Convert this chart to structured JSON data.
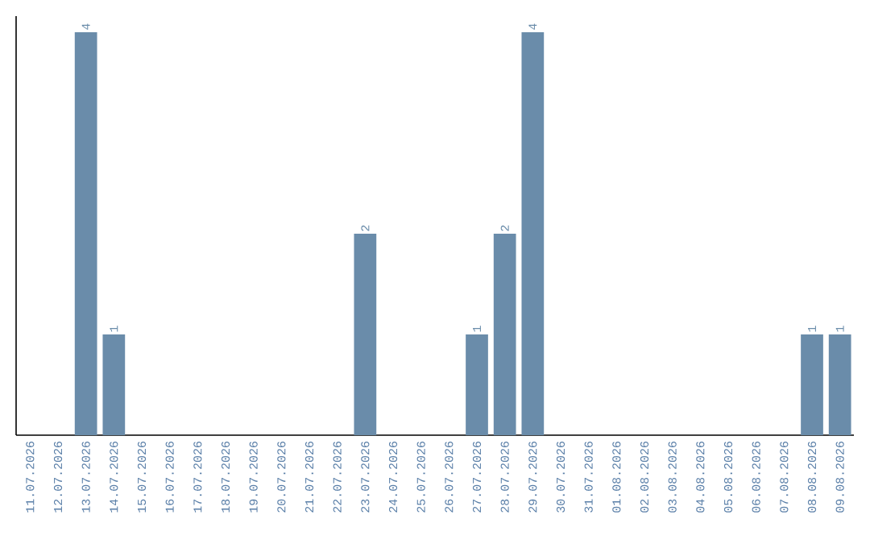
{
  "chart_data": {
    "type": "bar",
    "categories": [
      "11.07.2026",
      "12.07.2026",
      "13.07.2026",
      "14.07.2026",
      "15.07.2026",
      "16.07.2026",
      "17.07.2026",
      "18.07.2026",
      "19.07.2026",
      "20.07.2026",
      "21.07.2026",
      "22.07.2026",
      "23.07.2026",
      "24.07.2026",
      "25.07.2026",
      "26.07.2026",
      "27.07.2026",
      "28.07.2026",
      "29.07.2026",
      "30.07.2026",
      "31.07.2026",
      "01.08.2026",
      "02.08.2026",
      "03.08.2026",
      "04.08.2026",
      "05.08.2026",
      "06.08.2026",
      "07.08.2026",
      "08.08.2026",
      "09.08.2026"
    ],
    "values": [
      0,
      0,
      4,
      1,
      0,
      0,
      0,
      0,
      0,
      0,
      0,
      0,
      2,
      0,
      0,
      0,
      1,
      2,
      4,
      0,
      0,
      0,
      0,
      0,
      0,
      0,
      0,
      0,
      1,
      1
    ],
    "value_labels": [
      null,
      null,
      "4",
      "1",
      null,
      null,
      null,
      null,
      null,
      null,
      null,
      null,
      "2",
      null,
      null,
      null,
      "1",
      "2",
      "4",
      null,
      null,
      null,
      null,
      null,
      null,
      null,
      null,
      null,
      "1",
      "1"
    ],
    "color": "#6a8caa"
  }
}
